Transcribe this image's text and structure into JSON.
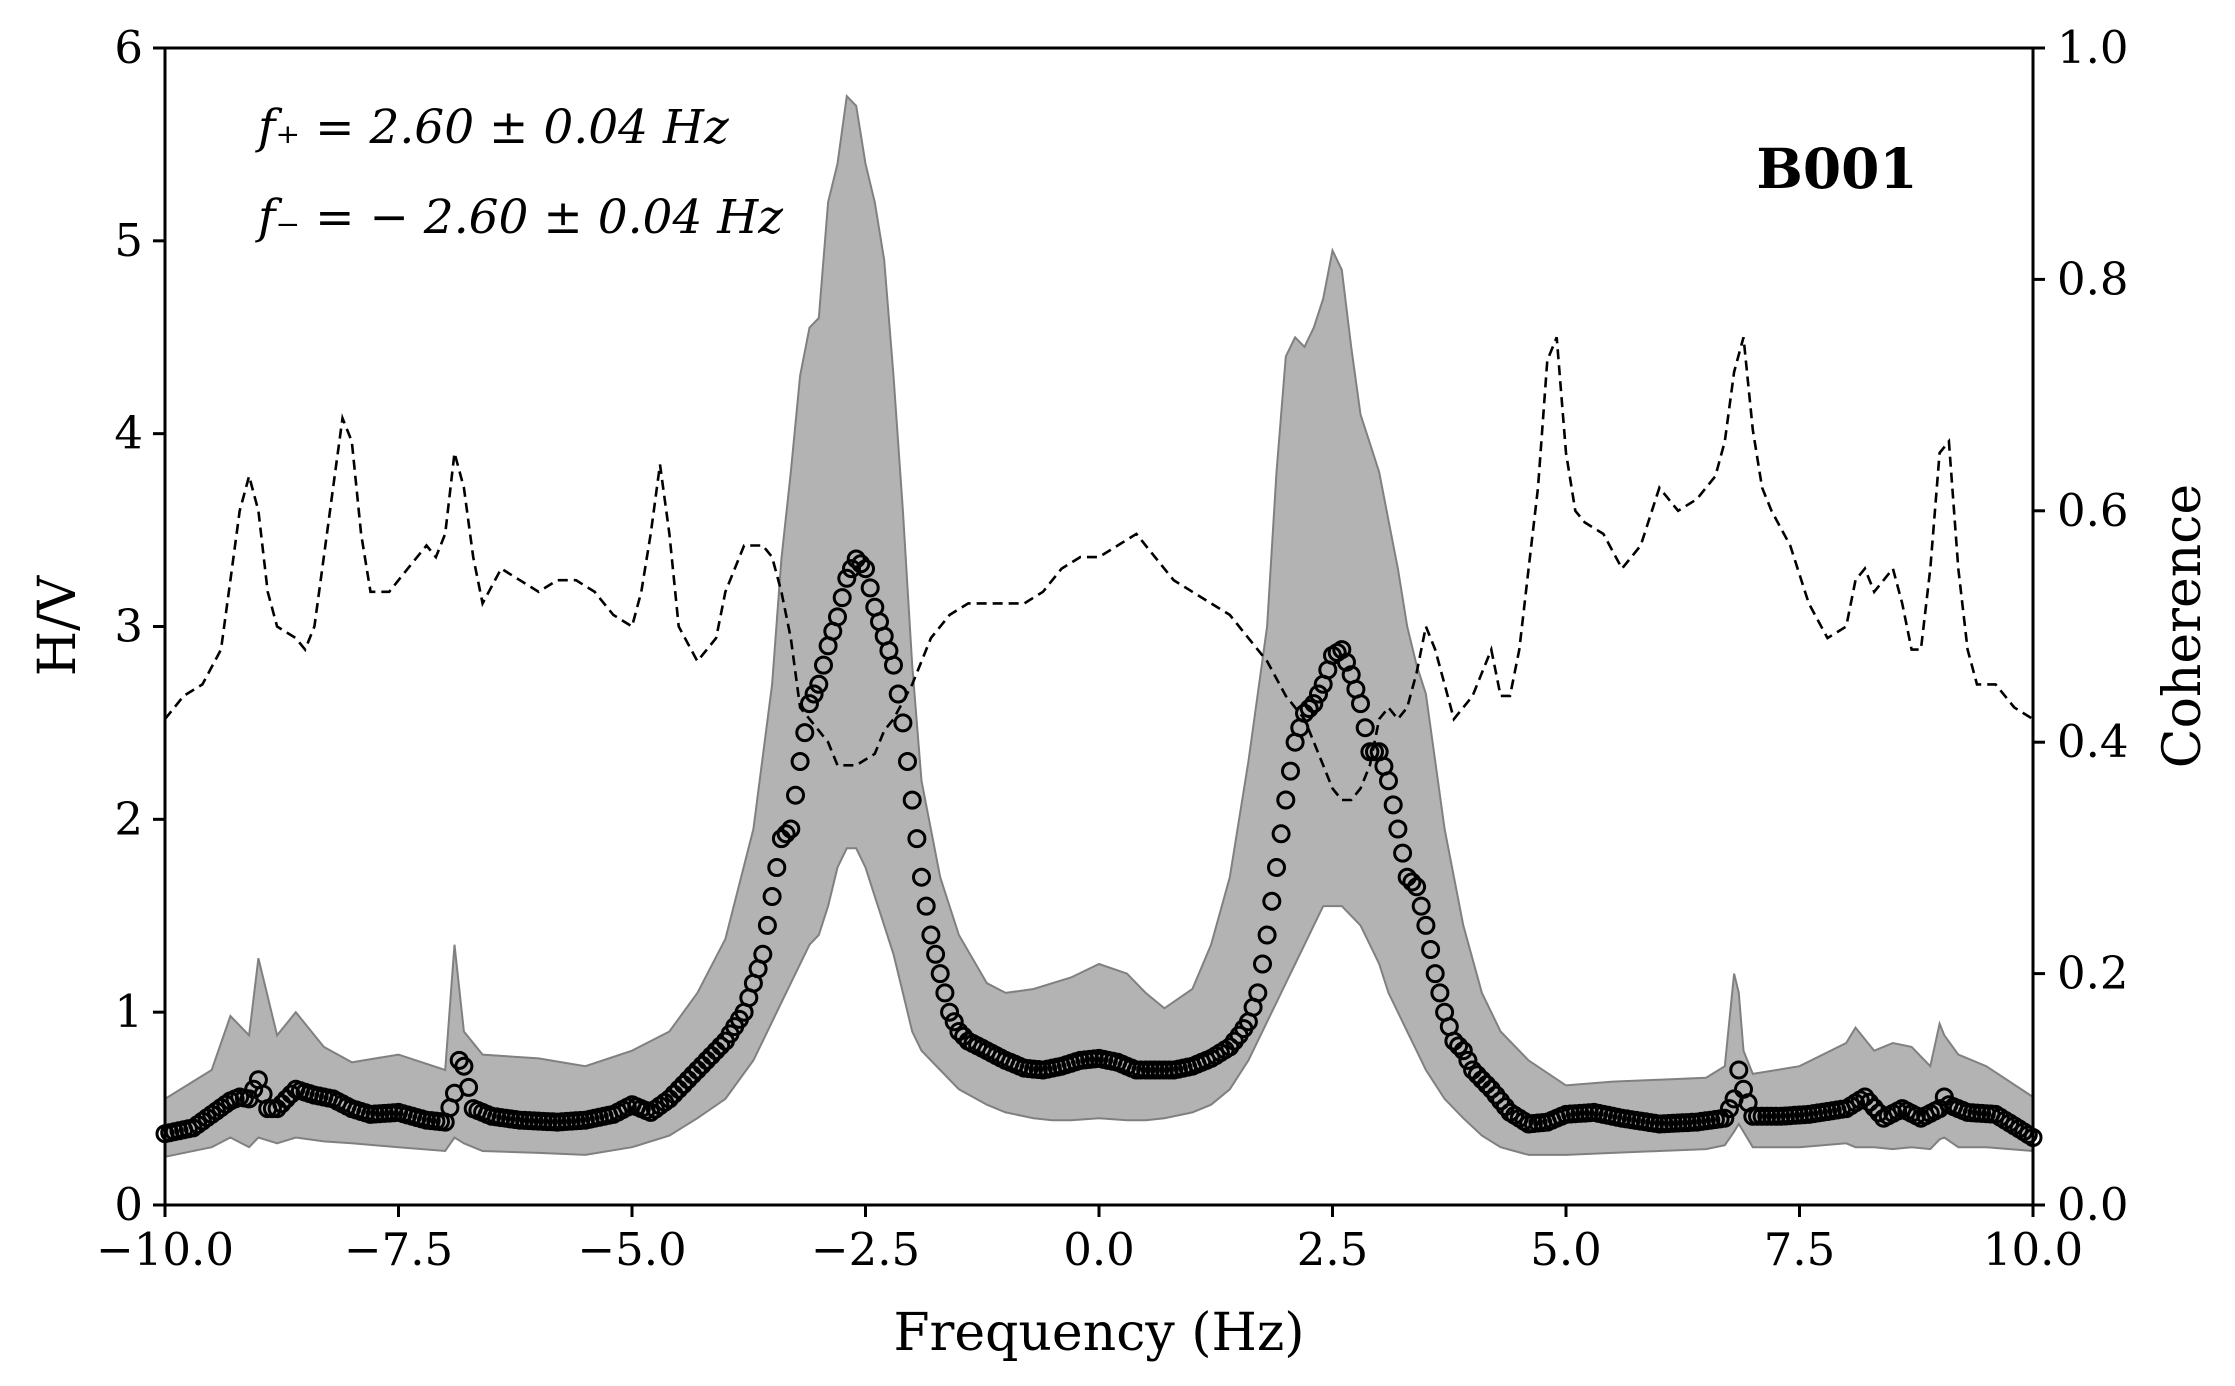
{
  "chart_data": {
    "type": "line",
    "title": "",
    "station_label": "B001",
    "annotations": [
      "f₊ = 2.60 ± 0.04 Hz",
      "f₋ = − 2.60 ± 0.04 Hz"
    ],
    "xlabel": "Frequency (Hz)",
    "ylabel_left": "H/V",
    "ylabel_right": "Coherence",
    "xlim": [
      -10,
      10
    ],
    "ylim_left": [
      0,
      6
    ],
    "ylim_right": [
      0,
      1
    ],
    "x_ticks": [
      -10,
      -7.5,
      -5,
      -2.5,
      0,
      2.5,
      5,
      7.5,
      10
    ],
    "x_tick_labels": [
      "−10.0",
      "−7.5",
      "−5.0",
      "−2.5",
      "0.0",
      "2.5",
      "5.0",
      "7.5",
      "10.0"
    ],
    "y_left_ticks": [
      0,
      1,
      2,
      3,
      4,
      5,
      6
    ],
    "y_left_tick_labels": [
      "0",
      "1",
      "2",
      "3",
      "4",
      "5",
      "6"
    ],
    "y_right_ticks": [
      0,
      0.2,
      0.4,
      0.6,
      0.8,
      1.0
    ],
    "y_right_tick_labels": [
      "0.0",
      "0.2",
      "0.4",
      "0.6",
      "0.8",
      "1.0"
    ],
    "grid": false,
    "colors": {
      "band": "#b3b3b3",
      "band_edge": "#808080",
      "markers": "#000000",
      "coherence_line": "#000000"
    },
    "series": [
      {
        "kind": "band",
        "axis": "left",
        "x": [
          -10,
          -9.5,
          -9.3,
          -9.1,
          -9.0,
          -8.8,
          -8.6,
          -8.3,
          -8.0,
          -7.5,
          -7.0,
          -6.9,
          -6.8,
          -6.6,
          -6.0,
          -5.5,
          -5.0,
          -4.6,
          -4.3,
          -4.0,
          -3.7,
          -3.5,
          -3.4,
          -3.3,
          -3.2,
          -3.1,
          -3.0,
          -2.9,
          -2.8,
          -2.7,
          -2.6,
          -2.5,
          -2.4,
          -2.3,
          -2.2,
          -2.1,
          -2.0,
          -1.9,
          -1.7,
          -1.5,
          -1.2,
          -1.0,
          -0.7,
          -0.5,
          -0.3,
          0.0,
          0.3,
          0.5,
          0.7,
          1.0,
          1.2,
          1.4,
          1.6,
          1.8,
          1.9,
          2.0,
          2.1,
          2.2,
          2.3,
          2.4,
          2.5,
          2.6,
          2.7,
          2.8,
          2.9,
          3.0,
          3.1,
          3.2,
          3.3,
          3.4,
          3.5,
          3.7,
          3.9,
          4.1,
          4.3,
          4.6,
          5.0,
          5.5,
          6.0,
          6.5,
          6.7,
          6.8,
          6.85,
          6.9,
          7.0,
          7.5,
          8.0,
          8.1,
          8.3,
          8.5,
          8.7,
          8.9,
          9.0,
          9.05,
          9.2,
          9.5,
          10
        ],
        "lower": [
          0.25,
          0.3,
          0.35,
          0.3,
          0.35,
          0.32,
          0.35,
          0.33,
          0.32,
          0.3,
          0.28,
          0.35,
          0.32,
          0.28,
          0.27,
          0.26,
          0.3,
          0.36,
          0.45,
          0.55,
          0.75,
          0.95,
          1.05,
          1.15,
          1.25,
          1.35,
          1.4,
          1.55,
          1.75,
          1.85,
          1.85,
          1.75,
          1.6,
          1.45,
          1.3,
          1.1,
          0.9,
          0.8,
          0.7,
          0.6,
          0.52,
          0.48,
          0.45,
          0.44,
          0.44,
          0.45,
          0.44,
          0.44,
          0.45,
          0.48,
          0.52,
          0.6,
          0.75,
          0.95,
          1.05,
          1.15,
          1.25,
          1.35,
          1.45,
          1.55,
          1.55,
          1.55,
          1.5,
          1.45,
          1.35,
          1.25,
          1.1,
          1.0,
          0.9,
          0.8,
          0.7,
          0.55,
          0.45,
          0.36,
          0.3,
          0.26,
          0.26,
          0.27,
          0.28,
          0.29,
          0.31,
          0.38,
          0.42,
          0.38,
          0.3,
          0.3,
          0.32,
          0.3,
          0.3,
          0.29,
          0.3,
          0.29,
          0.34,
          0.35,
          0.3,
          0.3,
          0.28
        ],
        "upper": [
          0.55,
          0.7,
          0.98,
          0.88,
          1.28,
          0.88,
          1.0,
          0.82,
          0.74,
          0.78,
          0.7,
          1.35,
          0.9,
          0.78,
          0.76,
          0.72,
          0.8,
          0.9,
          1.1,
          1.38,
          1.95,
          2.7,
          3.35,
          3.8,
          4.3,
          4.55,
          4.6,
          5.2,
          5.4,
          5.75,
          5.7,
          5.4,
          5.2,
          4.9,
          4.3,
          3.6,
          2.8,
          2.2,
          1.7,
          1.4,
          1.15,
          1.1,
          1.12,
          1.15,
          1.18,
          1.25,
          1.2,
          1.1,
          1.02,
          1.12,
          1.35,
          1.7,
          2.3,
          3.0,
          3.8,
          4.4,
          4.5,
          4.45,
          4.55,
          4.7,
          4.95,
          4.85,
          4.45,
          4.1,
          3.95,
          3.8,
          3.55,
          3.3,
          3.0,
          2.8,
          2.65,
          1.95,
          1.45,
          1.1,
          0.9,
          0.75,
          0.62,
          0.64,
          0.65,
          0.66,
          0.72,
          1.2,
          1.1,
          0.8,
          0.68,
          0.72,
          0.84,
          0.92,
          0.8,
          0.84,
          0.82,
          0.72,
          0.94,
          0.88,
          0.78,
          0.72,
          0.56
        ]
      },
      {
        "kind": "markers",
        "axis": "left",
        "x": [
          -10,
          -9.7,
          -9.5,
          -9.3,
          -9.2,
          -9.1,
          -9.0,
          -8.9,
          -8.8,
          -8.6,
          -8.4,
          -8.2,
          -8.0,
          -7.8,
          -7.5,
          -7.2,
          -7.0,
          -6.9,
          -6.85,
          -6.8,
          -6.7,
          -6.5,
          -6.2,
          -5.8,
          -5.5,
          -5.2,
          -5.0,
          -4.8,
          -4.6,
          -4.4,
          -4.2,
          -4.0,
          -3.8,
          -3.6,
          -3.5,
          -3.4,
          -3.3,
          -3.2,
          -3.1,
          -3.0,
          -2.9,
          -2.8,
          -2.7,
          -2.6,
          -2.5,
          -2.4,
          -2.3,
          -2.2,
          -2.1,
          -2.0,
          -1.9,
          -1.8,
          -1.7,
          -1.6,
          -1.5,
          -1.4,
          -1.2,
          -1.0,
          -0.8,
          -0.6,
          -0.4,
          -0.2,
          0.0,
          0.2,
          0.4,
          0.6,
          0.8,
          1.0,
          1.2,
          1.4,
          1.5,
          1.6,
          1.7,
          1.8,
          1.9,
          2.0,
          2.1,
          2.2,
          2.3,
          2.4,
          2.5,
          2.6,
          2.7,
          2.8,
          2.9,
          3.0,
          3.1,
          3.2,
          3.3,
          3.4,
          3.5,
          3.6,
          3.7,
          3.8,
          3.9,
          4.0,
          4.2,
          4.4,
          4.6,
          4.8,
          5.0,
          5.3,
          5.6,
          6.0,
          6.4,
          6.7,
          6.8,
          6.85,
          6.9,
          7.0,
          7.3,
          7.6,
          8.0,
          8.1,
          8.2,
          8.4,
          8.6,
          8.8,
          9.0,
          9.05,
          9.1,
          9.3,
          9.6,
          10
        ],
        "values": [
          0.37,
          0.4,
          0.47,
          0.54,
          0.56,
          0.55,
          0.65,
          0.5,
          0.5,
          0.6,
          0.57,
          0.55,
          0.5,
          0.47,
          0.48,
          0.44,
          0.43,
          0.58,
          0.75,
          0.72,
          0.5,
          0.46,
          0.44,
          0.43,
          0.44,
          0.47,
          0.52,
          0.48,
          0.55,
          0.65,
          0.75,
          0.85,
          1.0,
          1.3,
          1.6,
          1.9,
          1.95,
          2.3,
          2.6,
          2.7,
          2.9,
          3.05,
          3.25,
          3.35,
          3.3,
          3.1,
          2.95,
          2.8,
          2.5,
          2.1,
          1.7,
          1.4,
          1.2,
          1.0,
          0.9,
          0.85,
          0.8,
          0.75,
          0.71,
          0.7,
          0.72,
          0.75,
          0.76,
          0.74,
          0.7,
          0.7,
          0.7,
          0.72,
          0.76,
          0.82,
          0.88,
          0.95,
          1.1,
          1.4,
          1.75,
          2.1,
          2.4,
          2.55,
          2.6,
          2.7,
          2.85,
          2.88,
          2.75,
          2.6,
          2.35,
          2.35,
          2.2,
          1.95,
          1.7,
          1.65,
          1.45,
          1.2,
          1.0,
          0.85,
          0.8,
          0.7,
          0.6,
          0.48,
          0.42,
          0.43,
          0.47,
          0.48,
          0.45,
          0.42,
          0.43,
          0.45,
          0.55,
          0.7,
          0.6,
          0.46,
          0.46,
          0.47,
          0.5,
          0.53,
          0.56,
          0.45,
          0.5,
          0.45,
          0.5,
          0.56,
          0.52,
          0.48,
          0.47,
          0.35
        ]
      },
      {
        "kind": "dashed_line",
        "axis": "right",
        "name": "Coherence",
        "x": [
          -10,
          -9.8,
          -9.6,
          -9.4,
          -9.3,
          -9.2,
          -9.1,
          -9.0,
          -8.9,
          -8.8,
          -8.6,
          -8.5,
          -8.4,
          -8.3,
          -8.2,
          -8.1,
          -8.0,
          -7.9,
          -7.8,
          -7.6,
          -7.4,
          -7.2,
          -7.1,
          -7.0,
          -6.9,
          -6.8,
          -6.7,
          -6.6,
          -6.4,
          -6.2,
          -6.0,
          -5.8,
          -5.6,
          -5.4,
          -5.2,
          -5.0,
          -4.9,
          -4.8,
          -4.7,
          -4.6,
          -4.5,
          -4.3,
          -4.1,
          -4.0,
          -3.8,
          -3.6,
          -3.5,
          -3.4,
          -3.3,
          -3.2,
          -3.1,
          -3.0,
          -2.9,
          -2.8,
          -2.6,
          -2.4,
          -2.3,
          -2.2,
          -2.0,
          -1.8,
          -1.6,
          -1.4,
          -1.2,
          -1.0,
          -0.8,
          -0.6,
          -0.4,
          -0.2,
          0.0,
          0.2,
          0.4,
          0.6,
          0.8,
          1.0,
          1.2,
          1.4,
          1.6,
          1.8,
          2.0,
          2.2,
          2.4,
          2.5,
          2.6,
          2.7,
          2.8,
          2.9,
          3.0,
          3.1,
          3.2,
          3.3,
          3.4,
          3.5,
          3.6,
          3.7,
          3.8,
          3.9,
          4.0,
          4.1,
          4.2,
          4.3,
          4.4,
          4.5,
          4.6,
          4.7,
          4.8,
          4.9,
          5.0,
          5.1,
          5.2,
          5.4,
          5.6,
          5.8,
          6.0,
          6.2,
          6.4,
          6.6,
          6.7,
          6.8,
          6.9,
          7.0,
          7.1,
          7.2,
          7.4,
          7.6,
          7.8,
          8.0,
          8.1,
          8.2,
          8.3,
          8.4,
          8.5,
          8.6,
          8.7,
          8.8,
          8.9,
          9.0,
          9.1,
          9.2,
          9.3,
          9.4,
          9.6,
          9.8,
          10
        ],
        "values": [
          0.42,
          0.44,
          0.45,
          0.48,
          0.54,
          0.6,
          0.63,
          0.6,
          0.53,
          0.5,
          0.49,
          0.48,
          0.5,
          0.56,
          0.62,
          0.68,
          0.66,
          0.58,
          0.53,
          0.53,
          0.55,
          0.57,
          0.56,
          0.58,
          0.65,
          0.62,
          0.56,
          0.52,
          0.55,
          0.54,
          0.53,
          0.54,
          0.54,
          0.53,
          0.51,
          0.5,
          0.53,
          0.58,
          0.64,
          0.58,
          0.5,
          0.47,
          0.49,
          0.53,
          0.57,
          0.57,
          0.56,
          0.53,
          0.49,
          0.43,
          0.42,
          0.41,
          0.4,
          0.38,
          0.38,
          0.39,
          0.41,
          0.42,
          0.45,
          0.49,
          0.51,
          0.52,
          0.52,
          0.52,
          0.52,
          0.53,
          0.55,
          0.56,
          0.56,
          0.57,
          0.58,
          0.56,
          0.54,
          0.53,
          0.52,
          0.51,
          0.49,
          0.47,
          0.44,
          0.42,
          0.38,
          0.36,
          0.35,
          0.35,
          0.36,
          0.38,
          0.42,
          0.43,
          0.42,
          0.43,
          0.46,
          0.5,
          0.48,
          0.45,
          0.42,
          0.43,
          0.44,
          0.46,
          0.48,
          0.44,
          0.44,
          0.48,
          0.55,
          0.62,
          0.73,
          0.75,
          0.65,
          0.6,
          0.59,
          0.58,
          0.55,
          0.57,
          0.62,
          0.6,
          0.61,
          0.63,
          0.66,
          0.72,
          0.75,
          0.67,
          0.62,
          0.6,
          0.57,
          0.52,
          0.49,
          0.5,
          0.54,
          0.55,
          0.53,
          0.54,
          0.55,
          0.52,
          0.48,
          0.48,
          0.55,
          0.65,
          0.66,
          0.55,
          0.48,
          0.45,
          0.45,
          0.43,
          0.42
        ]
      }
    ]
  }
}
